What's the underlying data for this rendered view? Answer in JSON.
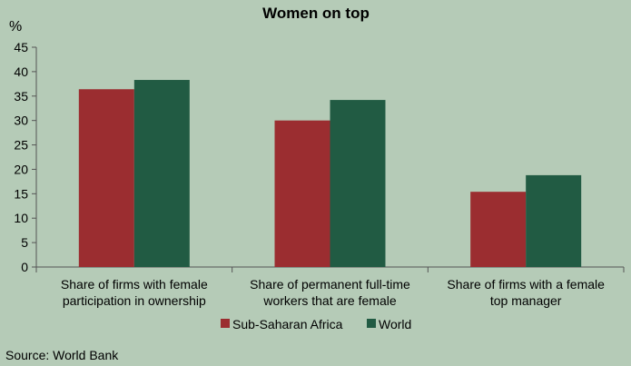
{
  "chart_data": {
    "type": "bar",
    "title": "Women on top",
    "unit_label": "%",
    "ylim": [
      0,
      45
    ],
    "yticks": [
      "0",
      "5",
      "10",
      "15",
      "20",
      "25",
      "30",
      "35",
      "40",
      "45"
    ],
    "categories": [
      [
        "Share of firms with female",
        "participation in ownership"
      ],
      [
        "Share of permanent full-time",
        "workers that are female"
      ],
      [
        "Share of firms with a female",
        "top manager"
      ]
    ],
    "series": [
      {
        "name": "Sub-Saharan Africa",
        "color": "#9b2d30",
        "values": [
          36.4,
          30.0,
          15.4
        ]
      },
      {
        "name": "World",
        "color": "#215b43",
        "values": [
          38.3,
          34.2,
          18.8
        ]
      }
    ],
    "legend_position": "bottom",
    "grid": false
  },
  "source": "Source: World Bank",
  "colors": {
    "background": "#b5cbb7",
    "axis": "#555555"
  }
}
